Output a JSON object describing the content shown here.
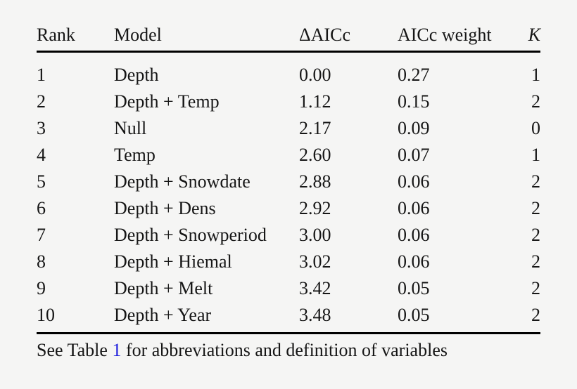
{
  "table": {
    "columns": [
      {
        "key": "rank",
        "label": "Rank",
        "class": "c-rank",
        "italic": false
      },
      {
        "key": "model",
        "label": "Model",
        "class": "c-model",
        "italic": false
      },
      {
        "key": "delta_aicc",
        "label": "ΔAICc",
        "class": "c-daicc",
        "italic": false
      },
      {
        "key": "aicc_weight",
        "label": "AICc weight",
        "class": "c-weight",
        "italic": false
      },
      {
        "key": "k",
        "label": "K",
        "class": "c-k",
        "italic": true
      }
    ],
    "rows": [
      {
        "rank": "1",
        "model": "Depth",
        "delta_aicc": "0.00",
        "aicc_weight": "0.27",
        "k": "1"
      },
      {
        "rank": "2",
        "model": "Depth + Temp",
        "delta_aicc": "1.12",
        "aicc_weight": "0.15",
        "k": "2"
      },
      {
        "rank": "3",
        "model": "Null",
        "delta_aicc": "2.17",
        "aicc_weight": "0.09",
        "k": "0"
      },
      {
        "rank": "4",
        "model": "Temp",
        "delta_aicc": "2.60",
        "aicc_weight": "0.07",
        "k": "1"
      },
      {
        "rank": "5",
        "model": "Depth + Snowdate",
        "delta_aicc": "2.88",
        "aicc_weight": "0.06",
        "k": "2"
      },
      {
        "rank": "6",
        "model": "Depth + Dens",
        "delta_aicc": "2.92",
        "aicc_weight": "0.06",
        "k": "2"
      },
      {
        "rank": "7",
        "model": "Depth + Snowperiod",
        "delta_aicc": "3.00",
        "aicc_weight": "0.06",
        "k": "2"
      },
      {
        "rank": "8",
        "model": "Depth + Hiemal",
        "delta_aicc": "3.02",
        "aicc_weight": "0.06",
        "k": "2"
      },
      {
        "rank": "9",
        "model": "Depth + Melt",
        "delta_aicc": "3.42",
        "aicc_weight": "0.05",
        "k": "2"
      },
      {
        "rank": "10",
        "model": "Depth + Year",
        "delta_aicc": "3.48",
        "aicc_weight": "0.05",
        "k": "2"
      }
    ]
  },
  "footnote": {
    "prefix": "See Table ",
    "link_text": "1",
    "suffix": " for abbreviations and definition of variables"
  },
  "colors": {
    "background": "#f5f5f4",
    "text": "#161616",
    "rule": "#000000",
    "link": "#2222dd"
  }
}
